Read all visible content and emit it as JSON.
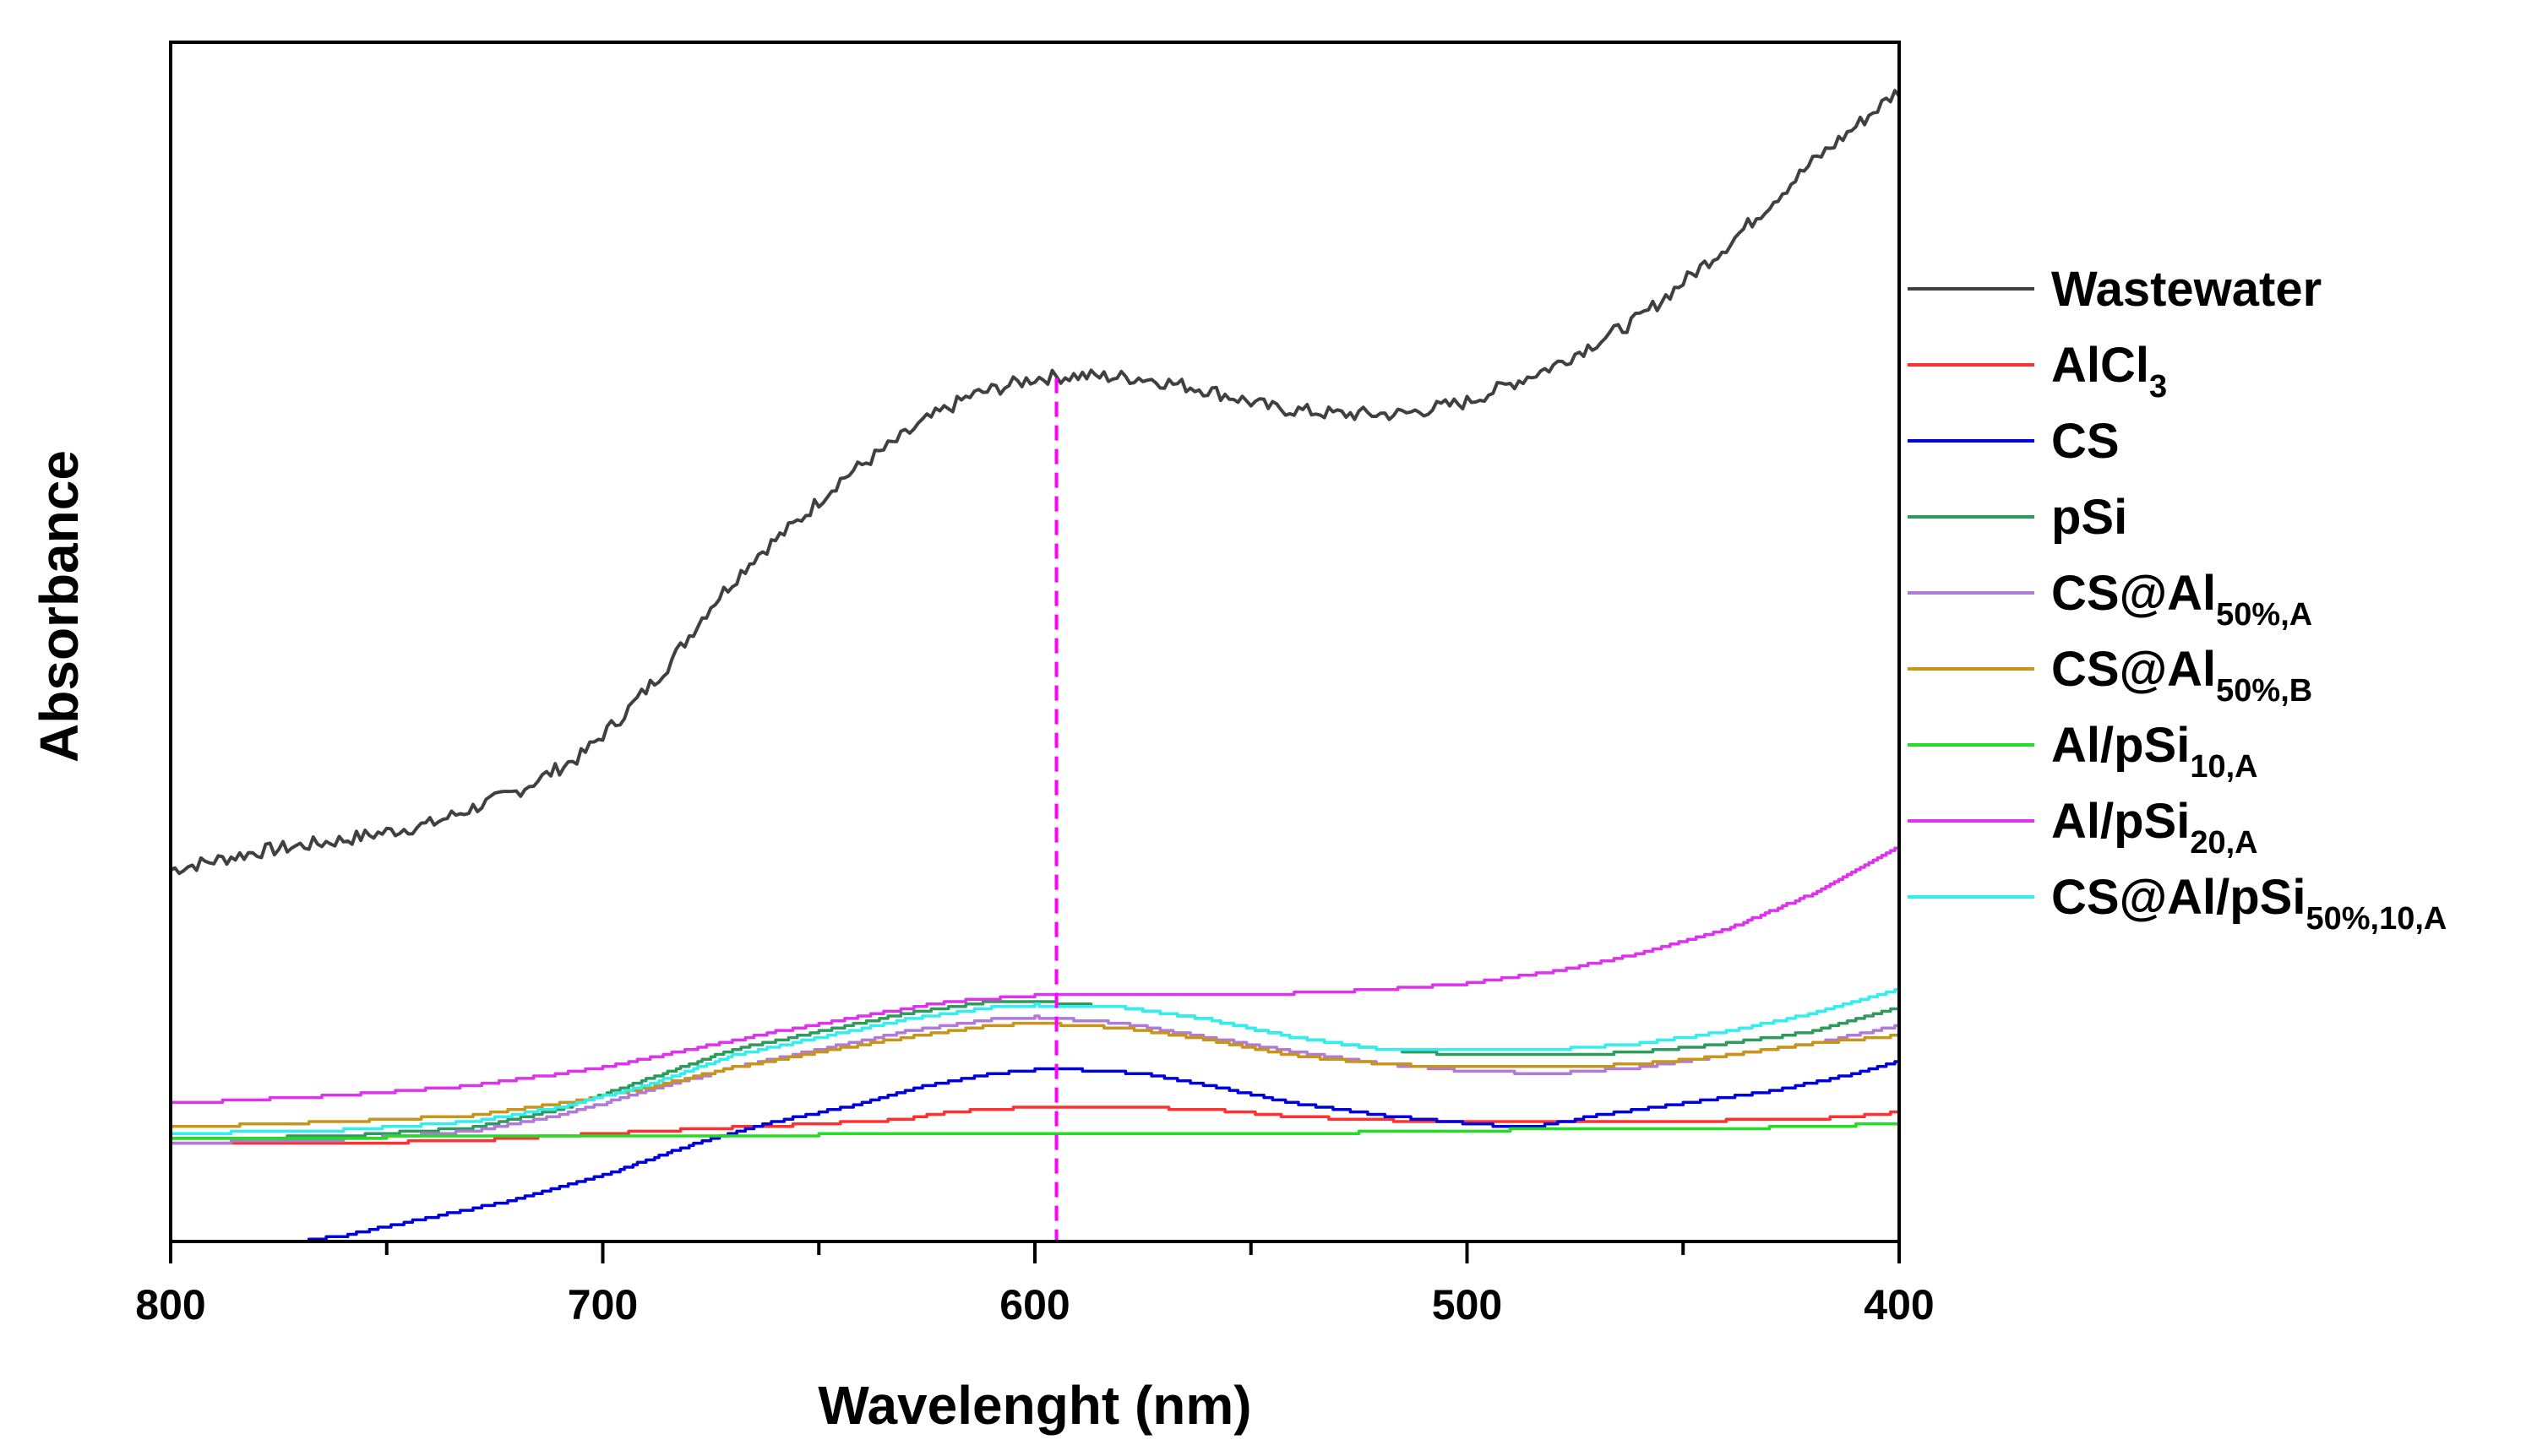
{
  "chart_data": {
    "type": "line",
    "title": "",
    "xlabel": "Wavelenght (nm)",
    "ylabel": "Absorbance",
    "xlim": [
      800,
      400
    ],
    "ylim": [
      0,
      1
    ],
    "x_ticks": [
      800,
      700,
      600,
      500,
      400
    ],
    "x_tick_labels": [
      "800",
      "700",
      "600",
      "500",
      "400"
    ],
    "y_ticks_shown": false,
    "legend_position": "right",
    "annotation": {
      "type": "vertical-dashed-line",
      "x": 595,
      "y_from": 0,
      "y_to": 0.72,
      "color": "#ff00ff"
    },
    "series": [
      {
        "name": "Wastewater",
        "label_base": "Wastewater",
        "label_sub": "",
        "color": "#404040",
        "noise": 0.006,
        "x": [
          800,
          780,
          760,
          740,
          720,
          705,
          695,
          685,
          675,
          665,
          655,
          645,
          635,
          625,
          615,
          600,
          590,
          575,
          560,
          545,
          530,
          515,
          500,
          480,
          460,
          440,
          420,
          400
        ],
        "y": [
          0.31,
          0.325,
          0.335,
          0.348,
          0.375,
          0.405,
          0.44,
          0.48,
          0.53,
          0.57,
          0.6,
          0.635,
          0.66,
          0.685,
          0.705,
          0.72,
          0.722,
          0.72,
          0.71,
          0.695,
          0.69,
          0.69,
          0.7,
          0.73,
          0.77,
          0.83,
          0.9,
          0.96
        ]
      },
      {
        "name": "AlCl3",
        "label_base": "AlCl",
        "label_sub": "3",
        "color": "#ff3030",
        "noise": 0,
        "x": [
          800,
          760,
          730,
          700,
          670,
          650,
          630,
          620,
          600,
          580,
          560,
          540,
          510,
          500,
          480,
          460,
          420,
          405,
          400
        ],
        "y": [
          0.082,
          0.082,
          0.084,
          0.09,
          0.095,
          0.098,
          0.102,
          0.108,
          0.112,
          0.112,
          0.11,
          0.104,
          0.1,
          0.1,
          0.1,
          0.1,
          0.102,
          0.106,
          0.108
        ]
      },
      {
        "name": "CS",
        "label_base": "CS",
        "label_sub": "",
        "color": "#0000dd",
        "noise": 0,
        "x": [
          800,
          783,
          760,
          740,
          720,
          700,
          680,
          660,
          640,
          625,
          610,
          600,
          590,
          575,
          560,
          540,
          520,
          505,
          495,
          485,
          470,
          450,
          430,
          410,
          400
        ],
        "y": [
          -0.02,
          -0.006,
          0.005,
          0.02,
          0.035,
          0.055,
          0.08,
          0.1,
          0.115,
          0.13,
          0.14,
          0.143,
          0.143,
          0.14,
          0.13,
          0.115,
          0.105,
          0.1,
          0.097,
          0.095,
          0.105,
          0.115,
          0.125,
          0.14,
          0.15
        ]
      },
      {
        "name": "pSi",
        "label_base": "pSi",
        "label_sub": "",
        "color": "#2e9a5c",
        "noise": 0,
        "x": [
          800,
          760,
          730,
          710,
          690,
          670,
          650,
          630,
          610,
          600,
          580,
          560,
          540,
          520,
          500,
          480,
          460,
          440,
          420,
          400
        ],
        "y": [
          0.085,
          0.088,
          0.095,
          0.11,
          0.135,
          0.16,
          0.175,
          0.19,
          0.2,
          0.2,
          0.195,
          0.185,
          0.17,
          0.16,
          0.155,
          0.155,
          0.158,
          0.165,
          0.175,
          0.195
        ]
      },
      {
        "name": "CS@Al50%,A",
        "label_base": "CS@Al",
        "label_sub": "50%,A",
        "color": "#b07ad6",
        "noise": 0,
        "x": [
          800,
          760,
          730,
          710,
          690,
          670,
          650,
          630,
          610,
          600,
          580,
          560,
          540,
          520,
          500,
          480,
          460,
          440,
          420,
          400
        ],
        "y": [
          0.082,
          0.085,
          0.092,
          0.105,
          0.125,
          0.145,
          0.16,
          0.175,
          0.185,
          0.187,
          0.182,
          0.17,
          0.158,
          0.148,
          0.142,
          0.14,
          0.145,
          0.155,
          0.165,
          0.18
        ]
      },
      {
        "name": "CS@Al50%,B",
        "label_base": "CS@Al",
        "label_sub": "50%,B",
        "color": "#c8941a",
        "noise": 0,
        "x": [
          800,
          760,
          730,
          710,
          690,
          670,
          650,
          630,
          610,
          600,
          580,
          560,
          540,
          520,
          500,
          480,
          460,
          440,
          420,
          400
        ],
        "y": [
          0.095,
          0.1,
          0.105,
          0.115,
          0.128,
          0.145,
          0.158,
          0.17,
          0.18,
          0.182,
          0.178,
          0.168,
          0.155,
          0.148,
          0.145,
          0.145,
          0.148,
          0.155,
          0.165,
          0.172
        ]
      },
      {
        "name": "Al/pSi10,A",
        "label_base": "Al/pSi",
        "label_sub": "10,A",
        "color": "#22dd22",
        "noise": 0,
        "x": [
          800,
          700,
          600,
          550,
          500,
          480,
          440,
          420,
          400
        ],
        "y": [
          0.086,
          0.088,
          0.09,
          0.09,
          0.092,
          0.094,
          0.094,
          0.096,
          0.098
        ]
      },
      {
        "name": "Al/pSi20,A",
        "label_base": "Al/pSi",
        "label_sub": "20,A",
        "color": "#dd33ee",
        "noise": 0,
        "x": [
          800,
          760,
          730,
          700,
          680,
          660,
          640,
          620,
          600,
          580,
          560,
          540,
          520,
          500,
          480,
          460,
          440,
          420,
          400
        ],
        "y": [
          0.115,
          0.122,
          0.13,
          0.145,
          0.16,
          0.175,
          0.188,
          0.2,
          0.205,
          0.205,
          0.205,
          0.207,
          0.21,
          0.215,
          0.225,
          0.24,
          0.26,
          0.29,
          0.33
        ]
      },
      {
        "name": "CS@Al/pSi50%,10,A",
        "label_base": "CS@Al/pSi",
        "label_sub": "50%,10,A",
        "color": "#33eeee",
        "noise": 0,
        "x": [
          800,
          760,
          730,
          710,
          690,
          670,
          650,
          630,
          610,
          600,
          580,
          560,
          540,
          520,
          500,
          480,
          460,
          440,
          420,
          400
        ],
        "y": [
          0.09,
          0.093,
          0.1,
          0.112,
          0.13,
          0.155,
          0.17,
          0.185,
          0.195,
          0.197,
          0.195,
          0.185,
          0.17,
          0.16,
          0.16,
          0.16,
          0.165,
          0.175,
          0.19,
          0.21
        ]
      }
    ]
  }
}
